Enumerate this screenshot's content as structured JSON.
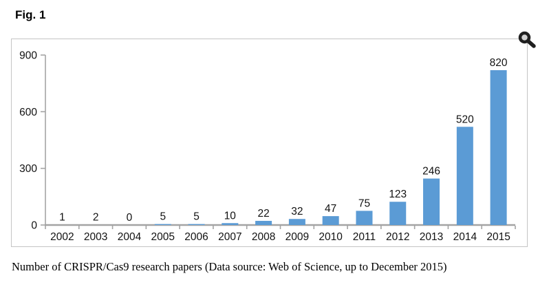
{
  "figure_label": "Fig. 1",
  "caption": "Number of CRISPR/Cas9 research papers (Data source: Web of Science, up to December 2015)",
  "colors": {
    "bar": "#5B9BD5",
    "axis": "#a3a3a3",
    "panel_border": "#c4c4c4",
    "label": "#111111",
    "magnifier": "#1f1f1f"
  },
  "chart_data": {
    "type": "bar",
    "categories": [
      "2002",
      "2003",
      "2004",
      "2005",
      "2006",
      "2007",
      "2008",
      "2009",
      "2010",
      "2011",
      "2012",
      "2013",
      "2014",
      "2015"
    ],
    "values": [
      1,
      2,
      0,
      5,
      5,
      10,
      22,
      32,
      47,
      75,
      123,
      246,
      520,
      820
    ],
    "title": "",
    "xlabel": "",
    "ylabel": "",
    "ylim": [
      0,
      900
    ],
    "yticks": [
      0,
      300,
      600,
      900
    ],
    "grid": false,
    "legend": null,
    "value_labels": true
  }
}
